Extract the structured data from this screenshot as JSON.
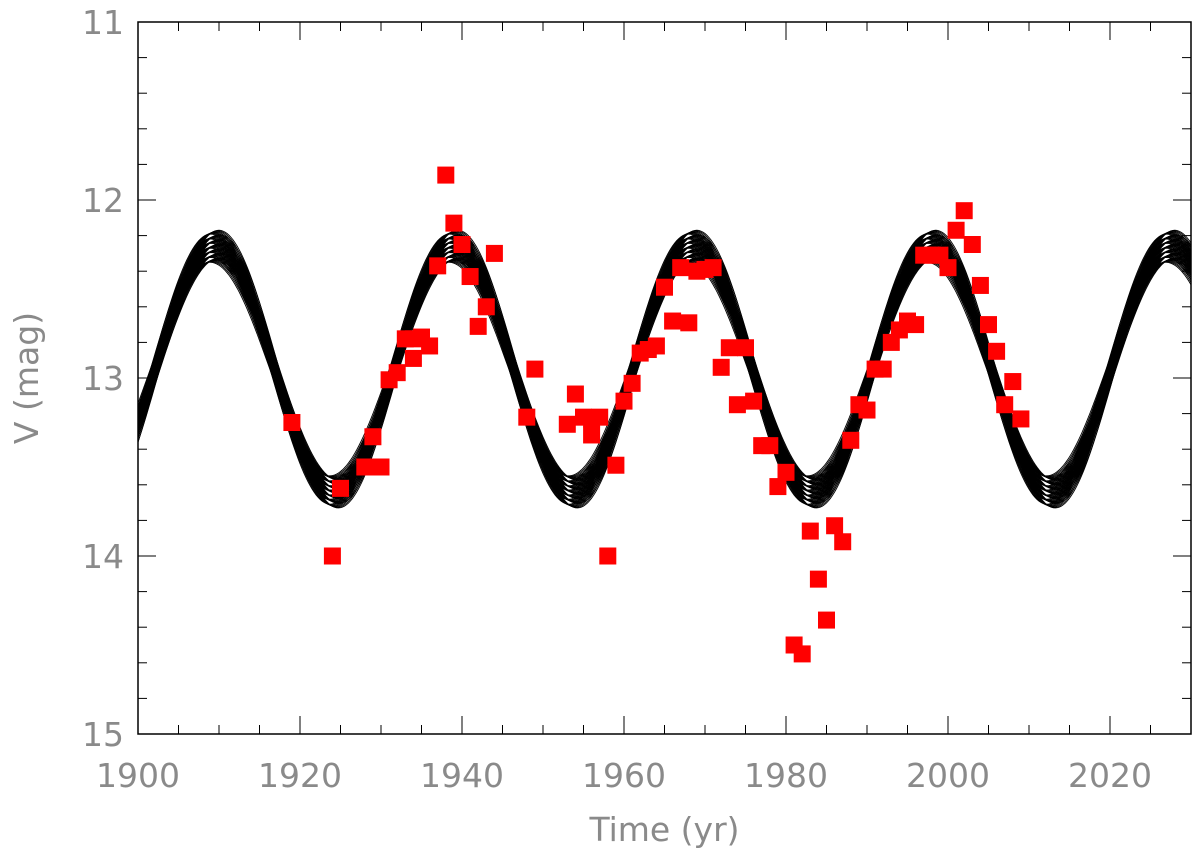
{
  "chart_data": {
    "type": "scatter",
    "title": "",
    "xlabel": "Time (yr)",
    "ylabel": "V (mag)",
    "xlim": [
      1900,
      2030
    ],
    "ylim": [
      15,
      11
    ],
    "y_axis_inverted": true,
    "grid": false,
    "x_ticks": [
      "1900",
      "1920",
      "1940",
      "1960",
      "1980",
      "2000",
      "2020"
    ],
    "y_ticks": [
      "11",
      "12",
      "13",
      "14",
      "15"
    ],
    "model_curves": {
      "color": "#000000",
      "count": 60,
      "period_yr": 29.5,
      "brightest_epoch_yr": 1909.5,
      "mean_mag": 12.95,
      "amplitude_mag_range": [
        0.6,
        0.78
      ],
      "phase_spread_yr": 1.2
    },
    "series": [
      {
        "color": "#ff0000",
        "marker": "square",
        "points": [
          [
            1919,
            13.25
          ],
          [
            1924,
            14.0
          ],
          [
            1925,
            13.62
          ],
          [
            1928,
            13.5
          ],
          [
            1929,
            13.33
          ],
          [
            1929,
            13.5
          ],
          [
            1930,
            13.5
          ],
          [
            1931,
            13.01
          ],
          [
            1932,
            12.97
          ],
          [
            1933,
            12.78
          ],
          [
            1934,
            12.78
          ],
          [
            1934,
            12.89
          ],
          [
            1935,
            12.77
          ],
          [
            1936,
            12.82
          ],
          [
            1937,
            12.37
          ],
          [
            1938,
            11.86
          ],
          [
            1939,
            12.13
          ],
          [
            1940,
            12.25
          ],
          [
            1941,
            12.43
          ],
          [
            1942,
            12.71
          ],
          [
            1943,
            12.6
          ],
          [
            1944,
            12.3
          ],
          [
            1948,
            13.22
          ],
          [
            1949,
            12.95
          ],
          [
            1953,
            13.26
          ],
          [
            1954,
            13.09
          ],
          [
            1955,
            13.22
          ],
          [
            1956,
            13.23
          ],
          [
            1956,
            13.32
          ],
          [
            1957,
            13.22
          ],
          [
            1958,
            14.0
          ],
          [
            1959,
            13.49
          ],
          [
            1960,
            13.13
          ],
          [
            1961,
            13.03
          ],
          [
            1962,
            12.86
          ],
          [
            1963,
            12.84
          ],
          [
            1964,
            12.82
          ],
          [
            1965,
            12.49
          ],
          [
            1966,
            12.68
          ],
          [
            1967,
            12.38
          ],
          [
            1968,
            12.69
          ],
          [
            1969,
            12.4
          ],
          [
            1970,
            12.39
          ],
          [
            1971,
            12.38
          ],
          [
            1972,
            12.94
          ],
          [
            1973,
            12.83
          ],
          [
            1974,
            13.15
          ],
          [
            1975,
            12.83
          ],
          [
            1976,
            13.13
          ],
          [
            1977,
            13.38
          ],
          [
            1978,
            13.38
          ],
          [
            1979,
            13.61
          ],
          [
            1980,
            13.53
          ],
          [
            1981,
            14.5
          ],
          [
            1982,
            14.55
          ],
          [
            1983,
            13.86
          ],
          [
            1984,
            14.13
          ],
          [
            1985,
            14.36
          ],
          [
            1986,
            13.83
          ],
          [
            1987,
            13.92
          ],
          [
            1988,
            13.35
          ],
          [
            1989,
            13.15
          ],
          [
            1990,
            13.18
          ],
          [
            1991,
            12.95
          ],
          [
            1992,
            12.95
          ],
          [
            1993,
            12.8
          ],
          [
            1994,
            12.73
          ],
          [
            1995,
            12.68
          ],
          [
            1996,
            12.7
          ],
          [
            1997,
            12.31
          ],
          [
            1998,
            12.31
          ],
          [
            1999,
            12.31
          ],
          [
            2000,
            12.38
          ],
          [
            2001,
            12.17
          ],
          [
            2002,
            12.06
          ],
          [
            2003,
            12.25
          ],
          [
            2004,
            12.48
          ],
          [
            2005,
            12.7
          ],
          [
            2006,
            12.85
          ],
          [
            2007,
            13.15
          ],
          [
            2008,
            13.02
          ],
          [
            2009,
            13.23
          ]
        ]
      }
    ]
  }
}
